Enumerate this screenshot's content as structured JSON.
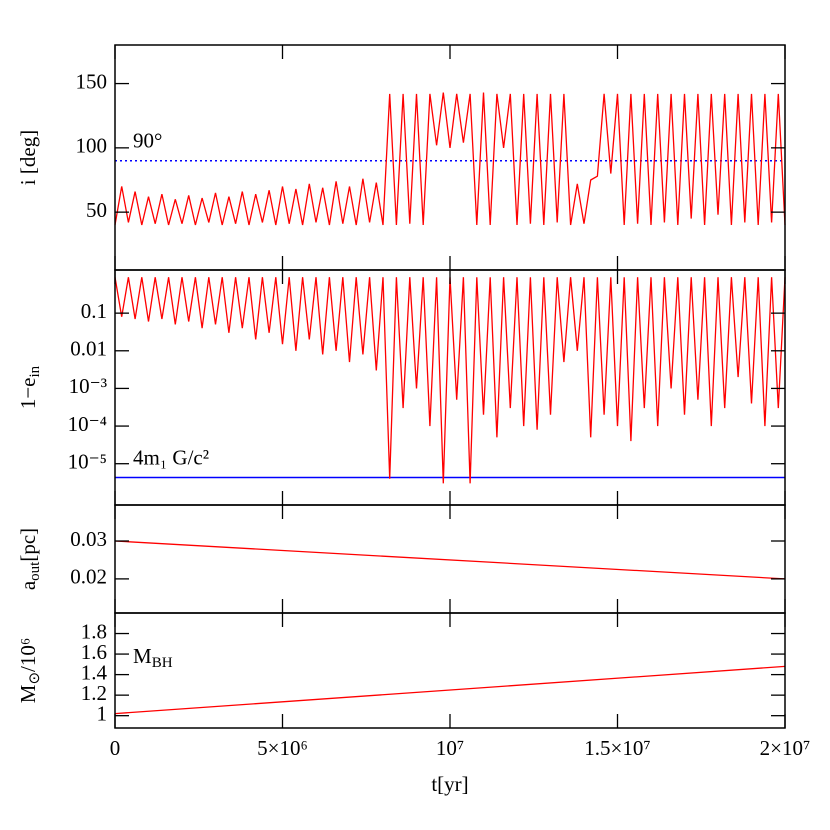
{
  "chart_data": [
    {
      "type": "line",
      "y_label": "i [deg]",
      "ylim": [
        5,
        180
      ],
      "yticks": [
        50,
        100,
        150
      ],
      "hline": {
        "value": 90,
        "label": "90°",
        "color": "#0000ff",
        "style": "dotted"
      },
      "xlim": [
        0,
        20000000
      ],
      "x": [
        0,
        200000,
        400000,
        600000,
        800000,
        1000000,
        1200000,
        1400000,
        1600000,
        1800000,
        2000000,
        2200000,
        2400000,
        2600000,
        2800000,
        3000000,
        3200000,
        3400000,
        3600000,
        3800000,
        4000000,
        4200000,
        4400000,
        4600000,
        4800000,
        5000000,
        5200000,
        5400000,
        5600000,
        5800000,
        6000000,
        6200000,
        6400000,
        6600000,
        6800000,
        7000000,
        7200000,
        7400000,
        7600000,
        7800000,
        8000000,
        8200000,
        8400000,
        8600000,
        8800000,
        9000000,
        9200000,
        9400000,
        9600000,
        9800000,
        10000000,
        10200000,
        10400000,
        10600000,
        10800000,
        11000000,
        11200000,
        11400000,
        11600000,
        11800000,
        12000000,
        12200000,
        12400000,
        12600000,
        12800000,
        13000000,
        13200000,
        13400000,
        13600000,
        13800000,
        14000000,
        14200000,
        14400000,
        14600000,
        14800000,
        15000000,
        15200000,
        15400000,
        15600000,
        15800000,
        16000000,
        16200000,
        16400000,
        16600000,
        16800000,
        17000000,
        17200000,
        17400000,
        17600000,
        17800000,
        18000000,
        18200000,
        18400000,
        18600000,
        18800000,
        19000000,
        19200000,
        19400000,
        19600000,
        19800000,
        20000000
      ],
      "series": [
        {
          "color": "#ff0000",
          "values": [
            40,
            70,
            42,
            66,
            40,
            62,
            41,
            64,
            40,
            60,
            41,
            63,
            40,
            61,
            42,
            65,
            40,
            62,
            41,
            66,
            40,
            64,
            42,
            67,
            40,
            70,
            41,
            68,
            40,
            72,
            42,
            69,
            40,
            74,
            41,
            70,
            40,
            76,
            42,
            73,
            40,
            142,
            40,
            142,
            41,
            142,
            40,
            142,
            102,
            143,
            100,
            142,
            104,
            142,
            40,
            143,
            40,
            142,
            100,
            142,
            40,
            142,
            41,
            142,
            40,
            142,
            42,
            142,
            40,
            72,
            41,
            75,
            78,
            142,
            80,
            142,
            40,
            142,
            41,
            142,
            40,
            142,
            42,
            142,
            40,
            142,
            45,
            142,
            40,
            142,
            48,
            142,
            40,
            142,
            42,
            142,
            40,
            142,
            42,
            142,
            40
          ]
        }
      ]
    },
    {
      "type": "line",
      "y_label": {
        "main": "1−e",
        "sub": "in"
      },
      "log": true,
      "ylim": [
        8e-07,
        1.4
      ],
      "yticks": [
        0.1,
        0.01,
        {
          "value": 0.001,
          "label": "10⁻³"
        },
        {
          "value": 0.0001,
          "label": "10⁻⁴"
        },
        {
          "value": 1e-05,
          "label": "10⁻⁵"
        }
      ],
      "hline": {
        "value": 4.3e-06,
        "label": "4m₁ G/c²",
        "color": "#0000ff",
        "style": "solid"
      },
      "xlim": [
        0,
        20000000
      ],
      "x": [
        0,
        200000,
        400000,
        600000,
        800000,
        1000000,
        1200000,
        1400000,
        1600000,
        1800000,
        2000000,
        2200000,
        2400000,
        2600000,
        2800000,
        3000000,
        3200000,
        3400000,
        3600000,
        3800000,
        4000000,
        4200000,
        4400000,
        4600000,
        4800000,
        5000000,
        5200000,
        5400000,
        5600000,
        5800000,
        6000000,
        6200000,
        6400000,
        6600000,
        6800000,
        7000000,
        7200000,
        7400000,
        7600000,
        7800000,
        8000000,
        8200000,
        8400000,
        8600000,
        8800000,
        9000000,
        9200000,
        9400000,
        9600000,
        9800000,
        10000000,
        10200000,
        10400000,
        10600000,
        10800000,
        11000000,
        11200000,
        11400000,
        11600000,
        11800000,
        12000000,
        12200000,
        12400000,
        12600000,
        12800000,
        13000000,
        13200000,
        13400000,
        13600000,
        13800000,
        14000000,
        14200000,
        14400000,
        14600000,
        14800000,
        15000000,
        15200000,
        15400000,
        15600000,
        15800000,
        16000000,
        16200000,
        16400000,
        16600000,
        16800000,
        17000000,
        17200000,
        17400000,
        17600000,
        17800000,
        18000000,
        18200000,
        18400000,
        18600000,
        18800000,
        19000000,
        19200000,
        19400000,
        19600000,
        19800000,
        20000000
      ],
      "series": [
        {
          "color": "#ff0000",
          "values": [
            0.9,
            0.08,
            0.9,
            0.07,
            0.9,
            0.06,
            0.9,
            0.07,
            0.9,
            0.05,
            0.9,
            0.06,
            0.9,
            0.04,
            0.9,
            0.05,
            0.9,
            0.03,
            0.9,
            0.04,
            0.9,
            0.02,
            0.9,
            0.03,
            0.9,
            0.015,
            0.9,
            0.01,
            0.9,
            0.02,
            0.9,
            0.008,
            0.9,
            0.01,
            0.9,
            0.005,
            0.9,
            0.008,
            0.9,
            0.003,
            0.9,
            4e-06,
            0.9,
            0.0003,
            0.9,
            0.001,
            0.9,
            0.0001,
            0.9,
            3e-06,
            0.9,
            0.0005,
            0.9,
            3e-06,
            0.9,
            0.0002,
            0.9,
            5e-05,
            0.9,
            0.0003,
            0.9,
            0.0001,
            0.9,
            8e-05,
            0.9,
            0.0002,
            0.9,
            0.005,
            0.9,
            0.01,
            0.9,
            5e-05,
            0.9,
            0.0002,
            0.9,
            0.0001,
            0.9,
            4e-05,
            0.9,
            0.0003,
            0.9,
            0.0001,
            0.9,
            0.001,
            0.9,
            0.0002,
            0.9,
            0.0005,
            0.9,
            0.0001,
            0.9,
            0.0003,
            0.9,
            0.002,
            0.9,
            0.0004,
            0.9,
            0.0001,
            0.9,
            0.0003,
            0.9
          ]
        }
      ]
    },
    {
      "type": "line",
      "y_label": {
        "main": "a",
        "sub": "out",
        "tail": "[pc]"
      },
      "ylim": [
        0.011,
        0.0395
      ],
      "yticks": [
        0.02,
        0.03
      ],
      "xlim": [
        0,
        20000000
      ],
      "x": [
        0,
        20000000
      ],
      "series": [
        {
          "color": "#ff0000",
          "values": [
            0.03,
            0.02
          ]
        }
      ]
    },
    {
      "type": "line",
      "y_label": {
        "main": "M",
        "sub": "⊙",
        "tail": "/10⁶"
      },
      "ylim": [
        0.88,
        2.0
      ],
      "yticks": [
        1,
        1.2,
        1.4,
        1.6,
        1.8
      ],
      "annotation": {
        "main": "M",
        "sub": "BH"
      },
      "xlim": [
        0,
        20000000
      ],
      "x_label": "t[yr]",
      "xticks": [
        0,
        {
          "value": 5000000,
          "label": "5×10⁶"
        },
        {
          "value": 10000000,
          "label": "10⁷"
        },
        {
          "value": 15000000,
          "label": "1.5×10⁷"
        },
        {
          "value": 20000000,
          "label": "2×10⁷"
        }
      ],
      "x": [
        0,
        20000000
      ],
      "series": [
        {
          "color": "#ff0000",
          "values": [
            1.02,
            1.48
          ]
        }
      ]
    }
  ]
}
